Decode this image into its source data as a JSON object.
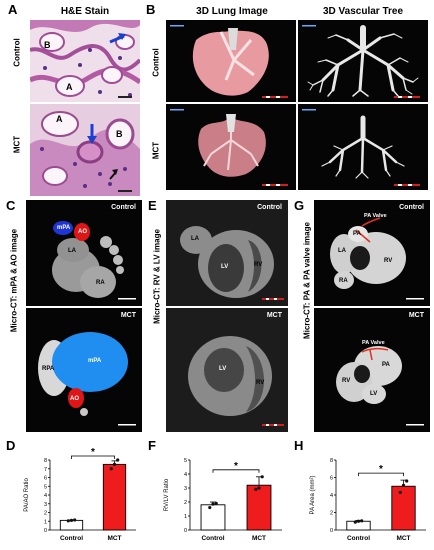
{
  "panels": {
    "A": {
      "letter": "A",
      "header": "H&E Stain",
      "rows": [
        "Control",
        "MCT"
      ],
      "labels_control": [
        "B",
        "A"
      ],
      "labels_mct": [
        "A",
        "B"
      ]
    },
    "B": {
      "letter": "B",
      "headers": [
        "3D Lung Image",
        "3D Vascular Tree"
      ],
      "rows": [
        "Control",
        "MCT"
      ]
    },
    "C": {
      "letter": "C",
      "side": "Micro-CT: mPA & AO image",
      "tags": [
        "Control",
        "MCT"
      ],
      "labels_control": [
        "mPA",
        "AO",
        "LA",
        "RA"
      ],
      "labels_mct": [
        "mPA",
        "RPA",
        "AO"
      ]
    },
    "E": {
      "letter": "E",
      "side": "Micro-CT: RV & LV image",
      "tags": [
        "Control",
        "MCT"
      ],
      "labels_control": [
        "LA",
        "LV",
        "RV"
      ],
      "labels_mct": [
        "LV",
        "RV"
      ]
    },
    "G": {
      "letter": "G",
      "side": "Micro-CT: PA & PA valve image",
      "tags": [
        "Control",
        "MCT"
      ],
      "labels_control": [
        "PA Valve",
        "PA",
        "LA",
        "RV",
        "RA"
      ],
      "labels_mct": [
        "PA Valve",
        "PA",
        "RV",
        "LV"
      ]
    }
  },
  "colors": {
    "mct_bar": "#ee1c1c",
    "control_bar": "#ffffff",
    "mpa_blue": "#1f6fe8",
    "ao_red": "#e01515",
    "valve_red": "#e0301e"
  },
  "chart_data": [
    {
      "letter": "D",
      "type": "bar",
      "categories": [
        "Control",
        "MCT"
      ],
      "values": [
        1.1,
        7.5
      ],
      "errors": [
        0.05,
        0.4
      ],
      "points": [
        [
          1.05,
          1.1,
          1.15
        ],
        [
          7.0,
          7.5,
          8.0
        ]
      ],
      "ylabel": "PA/AO Ratio",
      "ylim": [
        0,
        8
      ],
      "yticks": [
        0,
        1,
        2,
        3,
        4,
        5,
        6,
        7,
        8
      ],
      "significance": "*"
    },
    {
      "letter": "F",
      "type": "bar",
      "categories": [
        "Control",
        "MCT"
      ],
      "values": [
        1.8,
        3.2
      ],
      "errors": [
        0.2,
        0.6
      ],
      "points": [
        [
          1.6,
          1.85,
          1.9
        ],
        [
          2.9,
          3.0,
          3.8
        ]
      ],
      "ylabel": "RV/LV Ratio",
      "ylim": [
        0,
        5
      ],
      "yticks": [
        0,
        1,
        2,
        3,
        4,
        5
      ],
      "significance": "*"
    },
    {
      "letter": "H",
      "type": "bar",
      "categories": [
        "Control",
        "MCT"
      ],
      "values": [
        1.0,
        5.0
      ],
      "errors": [
        0.1,
        0.7
      ],
      "points": [
        [
          0.9,
          1.0,
          1.05
        ],
        [
          4.3,
          5.1,
          5.6
        ]
      ],
      "ylabel": "PA Area (mm²)",
      "ylim": [
        0,
        8
      ],
      "yticks": [
        0,
        2,
        4,
        6,
        8
      ],
      "significance": "*"
    }
  ]
}
